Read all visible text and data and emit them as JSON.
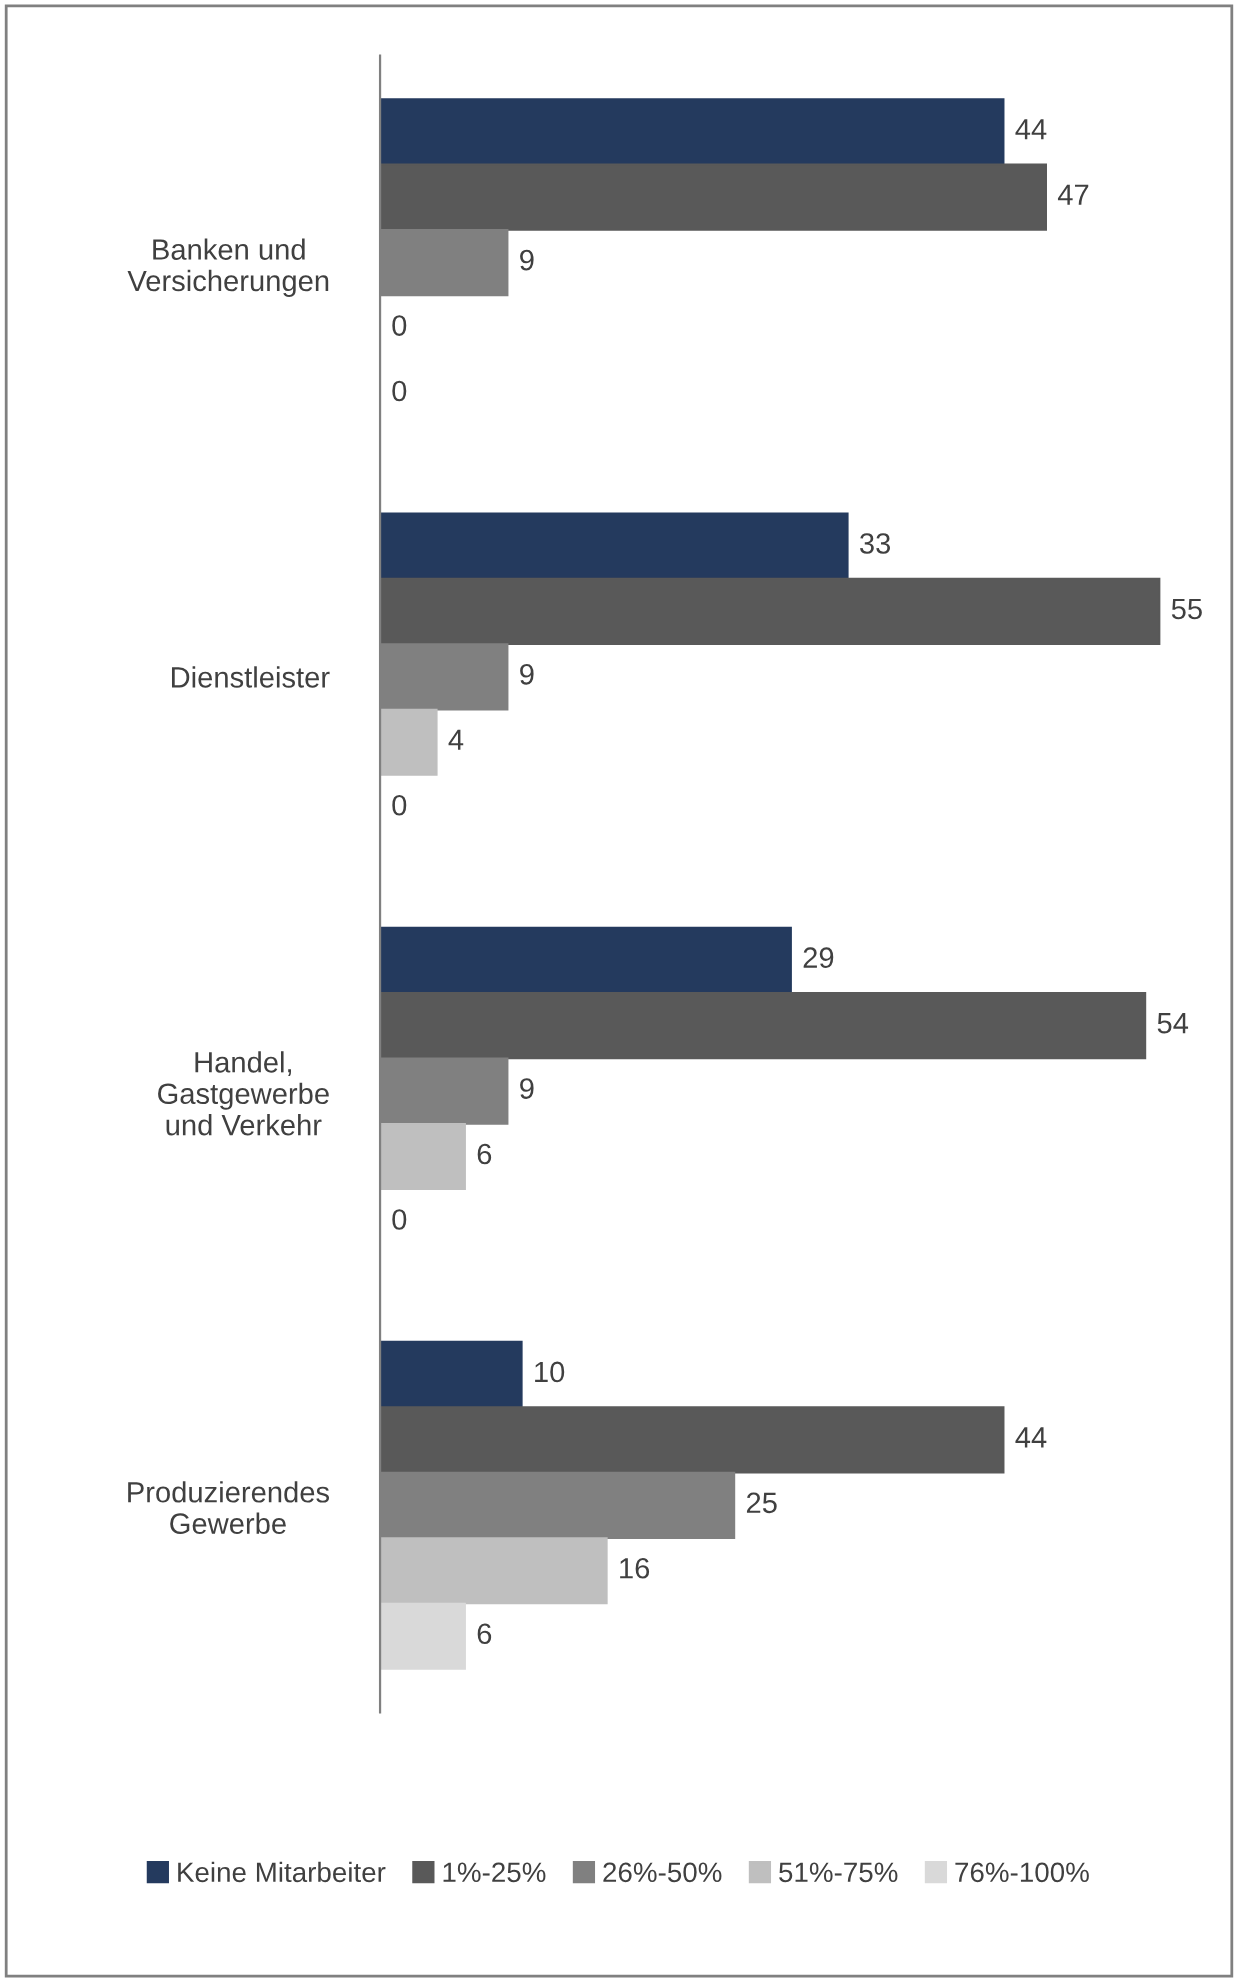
{
  "chart_data": {
    "type": "bar",
    "orientation": "horizontal",
    "data_labels": true,
    "legend": "bottom",
    "grid": false,
    "categories": [
      "Banken und\nVersicherungen",
      "Dienstleister",
      "Handel,\nGastgewerbe\nund Verkehr",
      "Produzierendes\nGewerbe"
    ],
    "series": [
      {
        "name": "Keine Mitarbeiter",
        "color": "#243a5e",
        "values": [
          44,
          33,
          29,
          10
        ]
      },
      {
        "name": "1%-25%",
        "color": "#595959",
        "values": [
          47,
          55,
          54,
          44
        ]
      },
      {
        "name": "26%-50%",
        "color": "#808080",
        "values": [
          9,
          9,
          9,
          25
        ]
      },
      {
        "name": "51%-75%",
        "color": "#bfbfbf",
        "values": [
          0,
          4,
          6,
          16
        ]
      },
      {
        "name": "76%-100%",
        "color": "#d9d9d9",
        "values": [
          0,
          0,
          0,
          6
        ]
      }
    ]
  }
}
